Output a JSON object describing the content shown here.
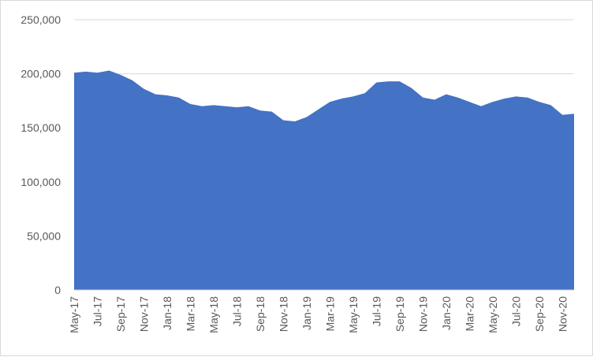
{
  "chart_data": {
    "type": "area",
    "title": "",
    "xlabel": "",
    "ylabel": "",
    "ylim": [
      0,
      250000
    ],
    "grid": true,
    "legend": "none",
    "color": "#4472c4",
    "yticks": [
      0,
      50000,
      100000,
      150000,
      200000,
      250000
    ],
    "ytick_labels": [
      "0",
      "50,000",
      "100,000",
      "150,000",
      "200,000",
      "250,000"
    ],
    "x": [
      "May-17",
      "Jun-17",
      "Jul-17",
      "Aug-17",
      "Sep-17",
      "Oct-17",
      "Nov-17",
      "Dec-17",
      "Jan-18",
      "Feb-18",
      "Mar-18",
      "Apr-18",
      "May-18",
      "Jun-18",
      "Jul-18",
      "Aug-18",
      "Sep-18",
      "Oct-18",
      "Nov-18",
      "Dec-18",
      "Jan-19",
      "Feb-19",
      "Mar-19",
      "Apr-19",
      "May-19",
      "Jun-19",
      "Jul-19",
      "Aug-19",
      "Sep-19",
      "Oct-19",
      "Nov-19",
      "Dec-19",
      "Jan-20",
      "Feb-20",
      "Mar-20",
      "Apr-20",
      "May-20",
      "Jun-20",
      "Jul-20",
      "Aug-20",
      "Sep-20",
      "Oct-20",
      "Nov-20",
      "Dec-20"
    ],
    "xtick_labels": [
      "May-17",
      "Jul-17",
      "Sep-17",
      "Nov-17",
      "Jan-18",
      "Mar-18",
      "May-18",
      "Jul-18",
      "Sep-18",
      "Nov-18",
      "Jan-19",
      "Mar-19",
      "May-19",
      "Jul-19",
      "Sep-19",
      "Nov-19",
      "Jan-20",
      "Mar-20",
      "May-20",
      "Jul-20",
      "Sep-20",
      "Nov-20"
    ],
    "values": [
      201000,
      202000,
      201000,
      203000,
      199000,
      194000,
      186000,
      181000,
      180000,
      178000,
      172000,
      170000,
      171000,
      170000,
      169000,
      170000,
      166000,
      165000,
      157000,
      156000,
      160000,
      167000,
      174000,
      177000,
      179000,
      182000,
      192000,
      193000,
      193000,
      187000,
      178000,
      176000,
      181000,
      178000,
      174000,
      170000,
      174000,
      177000,
      179000,
      178000,
      174000,
      171000,
      162000,
      163000
    ]
  }
}
